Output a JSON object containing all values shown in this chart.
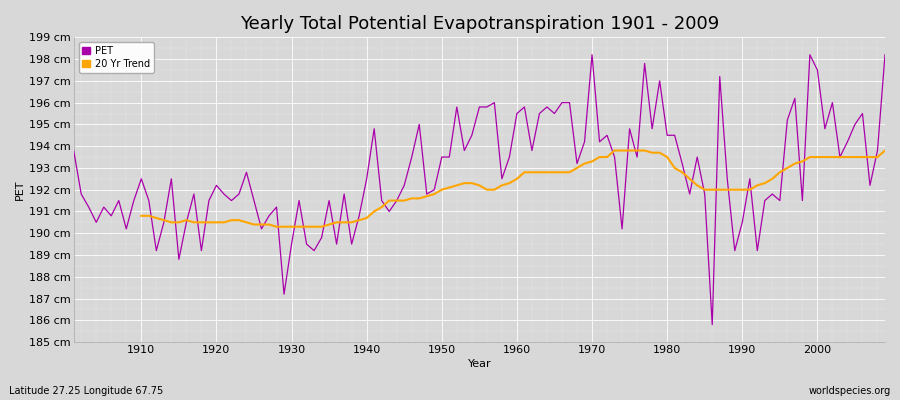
{
  "title": "Yearly Total Potential Evapotranspiration 1901 - 2009",
  "ylabel": "PET",
  "xlabel": "Year",
  "subtitle_left": "Latitude 27.25 Longitude 67.75",
  "subtitle_right": "worldspecies.org",
  "years": [
    1901,
    1902,
    1903,
    1904,
    1905,
    1906,
    1907,
    1908,
    1909,
    1910,
    1911,
    1912,
    1913,
    1914,
    1915,
    1916,
    1917,
    1918,
    1919,
    1920,
    1921,
    1922,
    1923,
    1924,
    1925,
    1926,
    1927,
    1928,
    1929,
    1930,
    1931,
    1932,
    1933,
    1934,
    1935,
    1936,
    1937,
    1938,
    1939,
    1940,
    1941,
    1942,
    1943,
    1944,
    1945,
    1946,
    1947,
    1948,
    1949,
    1950,
    1951,
    1952,
    1953,
    1954,
    1955,
    1956,
    1957,
    1958,
    1959,
    1960,
    1961,
    1962,
    1963,
    1964,
    1965,
    1966,
    1967,
    1968,
    1969,
    1970,
    1971,
    1972,
    1973,
    1974,
    1975,
    1976,
    1977,
    1978,
    1979,
    1980,
    1981,
    1982,
    1983,
    1984,
    1985,
    1986,
    1987,
    1988,
    1989,
    1990,
    1991,
    1992,
    1993,
    1994,
    1995,
    1996,
    1997,
    1998,
    1999,
    2000,
    2001,
    2002,
    2003,
    2004,
    2005,
    2006,
    2007,
    2008,
    2009
  ],
  "pet": [
    193.8,
    191.8,
    191.2,
    190.5,
    191.2,
    190.8,
    191.5,
    190.2,
    191.5,
    192.5,
    191.5,
    189.2,
    190.5,
    192.5,
    188.8,
    190.5,
    191.8,
    189.2,
    191.5,
    192.2,
    191.8,
    191.5,
    191.8,
    192.8,
    191.5,
    190.2,
    190.8,
    191.2,
    187.2,
    189.5,
    191.5,
    189.5,
    189.2,
    189.8,
    191.5,
    189.5,
    191.8,
    189.5,
    190.8,
    192.5,
    194.8,
    191.5,
    191.0,
    191.5,
    192.2,
    193.5,
    195.0,
    191.8,
    192.0,
    193.5,
    193.5,
    195.8,
    193.8,
    194.5,
    195.8,
    195.8,
    196.0,
    192.5,
    193.5,
    195.5,
    195.8,
    193.8,
    195.5,
    195.8,
    195.5,
    196.0,
    196.0,
    193.2,
    194.2,
    198.2,
    194.2,
    194.5,
    193.5,
    190.2,
    194.8,
    193.5,
    197.8,
    194.8,
    197.0,
    194.5,
    194.5,
    193.2,
    191.8,
    193.5,
    191.8,
    185.8,
    197.2,
    192.5,
    189.2,
    190.5,
    192.5,
    189.2,
    191.5,
    191.8,
    191.5,
    195.2,
    196.2,
    191.5,
    198.2,
    197.5,
    194.8,
    196.0,
    193.5,
    194.2,
    195.0,
    195.5,
    192.2,
    193.8,
    198.2
  ],
  "trend_years": [
    1910,
    1911,
    1912,
    1913,
    1914,
    1915,
    1916,
    1917,
    1918,
    1919,
    1920,
    1921,
    1922,
    1923,
    1924,
    1925,
    1926,
    1927,
    1928,
    1929,
    1930,
    1931,
    1932,
    1933,
    1934,
    1935,
    1936,
    1937,
    1938,
    1939,
    1940,
    1941,
    1942,
    1943,
    1944,
    1945,
    1946,
    1947,
    1948,
    1949,
    1950,
    1951,
    1952,
    1953,
    1954,
    1955,
    1956,
    1957,
    1958,
    1959,
    1960,
    1961,
    1962,
    1963,
    1964,
    1965,
    1966,
    1967,
    1968,
    1969,
    1970,
    1971,
    1972,
    1973,
    1974,
    1975,
    1976,
    1977,
    1978,
    1979,
    1980,
    1981,
    1982,
    1983,
    1984,
    1985,
    1986,
    1987,
    1988,
    1989,
    1990,
    1991,
    1992,
    1993,
    1994,
    1995,
    1996,
    1997,
    1998,
    1999,
    2000,
    2001,
    2002,
    2003,
    2004,
    2005,
    2006,
    2007,
    2008,
    2009
  ],
  "trend": [
    190.8,
    190.8,
    190.7,
    190.6,
    190.5,
    190.5,
    190.6,
    190.5,
    190.5,
    190.5,
    190.5,
    190.5,
    190.6,
    190.6,
    190.5,
    190.4,
    190.4,
    190.4,
    190.3,
    190.3,
    190.3,
    190.3,
    190.3,
    190.3,
    190.3,
    190.4,
    190.5,
    190.5,
    190.5,
    190.6,
    190.7,
    191.0,
    191.2,
    191.5,
    191.5,
    191.5,
    191.6,
    191.6,
    191.7,
    191.8,
    192.0,
    192.1,
    192.2,
    192.3,
    192.3,
    192.2,
    192.0,
    192.0,
    192.2,
    192.3,
    192.5,
    192.8,
    192.8,
    192.8,
    192.8,
    192.8,
    192.8,
    192.8,
    193.0,
    193.2,
    193.3,
    193.5,
    193.5,
    193.8,
    193.8,
    193.8,
    193.8,
    193.8,
    193.7,
    193.7,
    193.5,
    193.0,
    192.8,
    192.5,
    192.2,
    192.0,
    192.0,
    192.0,
    192.0,
    192.0,
    192.0,
    192.0,
    192.2,
    192.3,
    192.5,
    192.8,
    193.0,
    193.2,
    193.3,
    193.5,
    193.5,
    193.5,
    193.5,
    193.5,
    193.5,
    193.5,
    193.5,
    193.5,
    193.5,
    193.8
  ],
  "pet_color": "#aa00aa",
  "trend_color": "#ffa500",
  "bg_color": "#d8d8d8",
  "plot_bg_color": "#d8d8d8",
  "grid_color": "#ffffff",
  "ylim": [
    185,
    199
  ],
  "yticks": [
    185,
    186,
    187,
    188,
    189,
    190,
    191,
    192,
    193,
    194,
    195,
    196,
    197,
    198,
    199
  ],
  "ytick_labels": [
    "185 cm",
    "186 cm",
    "187 cm",
    "188 cm",
    "189 cm",
    "190 cm",
    "191 cm",
    "192 cm",
    "193 cm",
    "194 cm",
    "195 cm",
    "196 cm",
    "197 cm",
    "198 cm",
    "199 cm"
  ],
  "xticks": [
    1910,
    1920,
    1930,
    1940,
    1950,
    1960,
    1970,
    1980,
    1990,
    2000
  ],
  "xlim": [
    1901,
    2009
  ],
  "title_fontsize": 13,
  "label_fontsize": 8,
  "tick_fontsize": 8
}
